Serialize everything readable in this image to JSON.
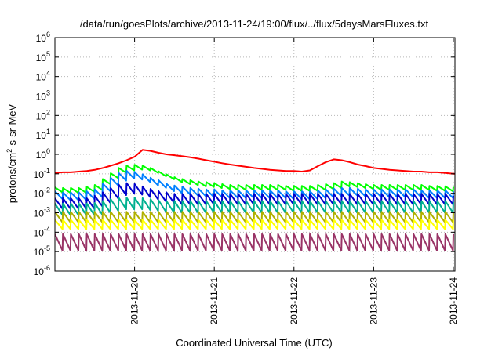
{
  "chart_data": {
    "type": "line",
    "title": "/data/run/goesPlots/archive/2013-11-24/19:00/flux/../flux/5daysMarsFluxes.txt",
    "xlabel": "Coordinated Universal Time (UTC)",
    "ylabel": "protons/cm²-s-sr-MeV",
    "y_scale": "log",
    "ylim": [
      1e-06,
      1000000.0
    ],
    "xlim": [
      0,
      5.02
    ],
    "y_ticks": [
      {
        "value": -6,
        "mantissa": "10",
        "exp": "-6"
      },
      {
        "value": -5,
        "mantissa": "10",
        "exp": "-5"
      },
      {
        "value": -4,
        "mantissa": "10",
        "exp": "-4"
      },
      {
        "value": -3,
        "mantissa": "10",
        "exp": "-3"
      },
      {
        "value": -2,
        "mantissa": "10",
        "exp": "-2"
      },
      {
        "value": -1,
        "mantissa": "10",
        "exp": "-1"
      },
      {
        "value": 0,
        "mantissa": "10",
        "exp": "0"
      },
      {
        "value": 1,
        "mantissa": "10",
        "exp": "1"
      },
      {
        "value": 2,
        "mantissa": "10",
        "exp": "2"
      },
      {
        "value": 3,
        "mantissa": "10",
        "exp": "3"
      },
      {
        "value": 4,
        "mantissa": "10",
        "exp": "4"
      },
      {
        "value": 5,
        "mantissa": "10",
        "exp": "5"
      },
      {
        "value": 6,
        "mantissa": "10",
        "exp": "6"
      }
    ],
    "x_ticks": [
      {
        "value": 1,
        "label": "2013-11-20"
      },
      {
        "value": 2,
        "label": "2013-11-21"
      },
      {
        "value": 3,
        "label": "2013-11-22"
      },
      {
        "value": 4,
        "label": "2013-11-23"
      },
      {
        "value": 5,
        "label": "2013-11-24"
      }
    ],
    "grid": true,
    "legend": "none",
    "series": [
      {
        "color": "#ff0000",
        "x": [
          0,
          0.1,
          0.2,
          0.3,
          0.4,
          0.5,
          0.6,
          0.7,
          0.8,
          0.9,
          1,
          1.1,
          1.2,
          1.3,
          1.4,
          1.5,
          1.6,
          1.7,
          1.8,
          1.9,
          2,
          2.1,
          2.2,
          2.3,
          2.4,
          2.5,
          2.6,
          2.7,
          2.8,
          2.9,
          3,
          3.1,
          3.2,
          3.3,
          3.4,
          3.5,
          3.6,
          3.7,
          3.8,
          3.9,
          4,
          4.1,
          4.2,
          4.3,
          4.4,
          4.5,
          4.6,
          4.7,
          4.8,
          4.9,
          5,
          5.02
        ],
        "y": [
          0.11,
          0.12,
          0.12,
          0.13,
          0.14,
          0.16,
          0.2,
          0.26,
          0.35,
          0.5,
          0.75,
          1.7,
          1.5,
          1.2,
          1.0,
          0.9,
          0.8,
          0.7,
          0.6,
          0.5,
          0.42,
          0.35,
          0.3,
          0.26,
          0.23,
          0.2,
          0.18,
          0.16,
          0.15,
          0.14,
          0.14,
          0.13,
          0.15,
          0.25,
          0.4,
          0.55,
          0.5,
          0.4,
          0.3,
          0.25,
          0.2,
          0.18,
          0.16,
          0.15,
          0.14,
          0.13,
          0.13,
          0.12,
          0.12,
          0.11,
          0.1,
          0.1
        ]
      },
      {
        "color": "#00ff00",
        "base": [
          0.015,
          0.014,
          0.014,
          0.014,
          0.016,
          0.02,
          0.04,
          0.08,
          0.15,
          0.2,
          0.22,
          0.2,
          0.15,
          0.1,
          0.07,
          0.05,
          0.04,
          0.035,
          0.03,
          0.028,
          0.025,
          0.022,
          0.02,
          0.02,
          0.02,
          0.02,
          0.02,
          0.02,
          0.02,
          0.018,
          0.018,
          0.018,
          0.018,
          0.02,
          0.022,
          0.025,
          0.03,
          0.028,
          0.025,
          0.022,
          0.02,
          0.02,
          0.02,
          0.02,
          0.02,
          0.02,
          0.02,
          0.018,
          0.018,
          0.017,
          0.016
        ],
        "swing": 1.8
      },
      {
        "color": "#0080ff",
        "base": [
          0.008,
          0.007,
          0.007,
          0.007,
          0.008,
          0.01,
          0.02,
          0.04,
          0.07,
          0.09,
          0.08,
          0.06,
          0.04,
          0.03,
          0.02,
          0.016,
          0.014,
          0.012,
          0.011,
          0.01,
          0.01,
          0.009,
          0.009,
          0.009,
          0.009,
          0.009,
          0.009,
          0.009,
          0.009,
          0.008,
          0.008,
          0.008,
          0.008,
          0.009,
          0.01,
          0.011,
          0.012,
          0.012,
          0.011,
          0.01,
          0.01,
          0.01,
          0.01,
          0.01,
          0.01,
          0.01,
          0.009,
          0.009,
          0.009,
          0.009,
          0.008
        ],
        "swing": 2.5
      },
      {
        "color": "#0000cc",
        "base": [
          0.003,
          0.003,
          0.003,
          0.003,
          0.003,
          0.004,
          0.006,
          0.01,
          0.015,
          0.018,
          0.016,
          0.012,
          0.009,
          0.007,
          0.006,
          0.005,
          0.005,
          0.005,
          0.005,
          0.005,
          0.005,
          0.005,
          0.005,
          0.005,
          0.005,
          0.005,
          0.005,
          0.005,
          0.005,
          0.005,
          0.005,
          0.005,
          0.005,
          0.005,
          0.005,
          0.005,
          0.005,
          0.005,
          0.005,
          0.005,
          0.005,
          0.005,
          0.005,
          0.005,
          0.005,
          0.005,
          0.005,
          0.005,
          0.005,
          0.005,
          0.004
        ],
        "swing": 3.5
      },
      {
        "color": "#00b090",
        "base": [
          0.0015,
          0.0015,
          0.0015,
          0.0015,
          0.0015,
          0.0016,
          0.002,
          0.0025,
          0.003,
          0.003,
          0.003,
          0.0028,
          0.0025,
          0.0022,
          0.002,
          0.002,
          0.002,
          0.002,
          0.002,
          0.002,
          0.002,
          0.002,
          0.002,
          0.002,
          0.002,
          0.002,
          0.002,
          0.002,
          0.002,
          0.002,
          0.002,
          0.002,
          0.002,
          0.002,
          0.002,
          0.002,
          0.002,
          0.002,
          0.002,
          0.002,
          0.002,
          0.002,
          0.002,
          0.002,
          0.002,
          0.002,
          0.002,
          0.002,
          0.002,
          0.002,
          0.0018
        ],
        "swing": 4.0
      },
      {
        "color": "#b0b000",
        "base": [
          0.0006,
          0.0006,
          0.0006,
          0.0006,
          0.0006,
          0.0006,
          0.0006,
          0.0006,
          0.0006,
          0.0006,
          0.0006,
          0.0006,
          0.0006,
          0.0006,
          0.0006,
          0.0006,
          0.0006,
          0.0006,
          0.0006,
          0.0006,
          0.0006,
          0.0006,
          0.0006,
          0.0006,
          0.0006,
          0.0006,
          0.0006,
          0.0006,
          0.0006,
          0.0006,
          0.0006,
          0.0006,
          0.0006,
          0.0006,
          0.0006,
          0.0006,
          0.0006,
          0.0006,
          0.0006,
          0.0006,
          0.0006,
          0.0006,
          0.0006,
          0.0006,
          0.0006,
          0.0006,
          0.0006,
          0.0006,
          0.0006,
          0.0006,
          0.0006
        ],
        "swing": 3.5
      },
      {
        "color": "#ffff00",
        "base": [
          0.00025,
          0.00025,
          0.00025,
          0.00025,
          0.00025,
          0.00025,
          0.00025,
          0.00025,
          0.00025,
          0.00025,
          0.00025,
          0.00025,
          0.00025,
          0.00025,
          0.00025,
          0.00025,
          0.00025,
          0.00025,
          0.00025,
          0.00025,
          0.00025,
          0.00025,
          0.00025,
          0.00025,
          0.00025,
          0.00025,
          0.00025,
          0.00025,
          0.00025,
          0.00025,
          0.00025,
          0.00025,
          0.00025,
          0.00025,
          0.00025,
          0.00025,
          0.00025,
          0.00025,
          0.00025,
          0.00025,
          0.00025,
          0.00025,
          0.00025,
          0.00025,
          0.00025,
          0.00025,
          0.00025,
          0.00025,
          0.00025,
          0.00025,
          0.00025
        ],
        "swing": 3.0
      },
      {
        "color": "#993366",
        "base": [
          3e-05,
          3e-05,
          3e-05,
          3e-05,
          3e-05,
          3e-05,
          3e-05,
          3e-05,
          3e-05,
          3e-05,
          3e-05,
          3e-05,
          3e-05,
          3e-05,
          3e-05,
          3e-05,
          3e-05,
          3e-05,
          3e-05,
          3e-05,
          3e-05,
          3e-05,
          3e-05,
          3e-05,
          3e-05,
          3e-05,
          3e-05,
          3e-05,
          3e-05,
          3e-05,
          3e-05,
          3e-05,
          3e-05,
          3e-05,
          3e-05,
          3e-05,
          3e-05,
          3e-05,
          3e-05,
          3e-05,
          3e-05,
          3e-05,
          3e-05,
          3e-05,
          3e-05,
          3e-05,
          3e-05,
          3e-05,
          3e-05,
          3e-05,
          3e-05
        ],
        "swing": 7.0
      }
    ]
  }
}
